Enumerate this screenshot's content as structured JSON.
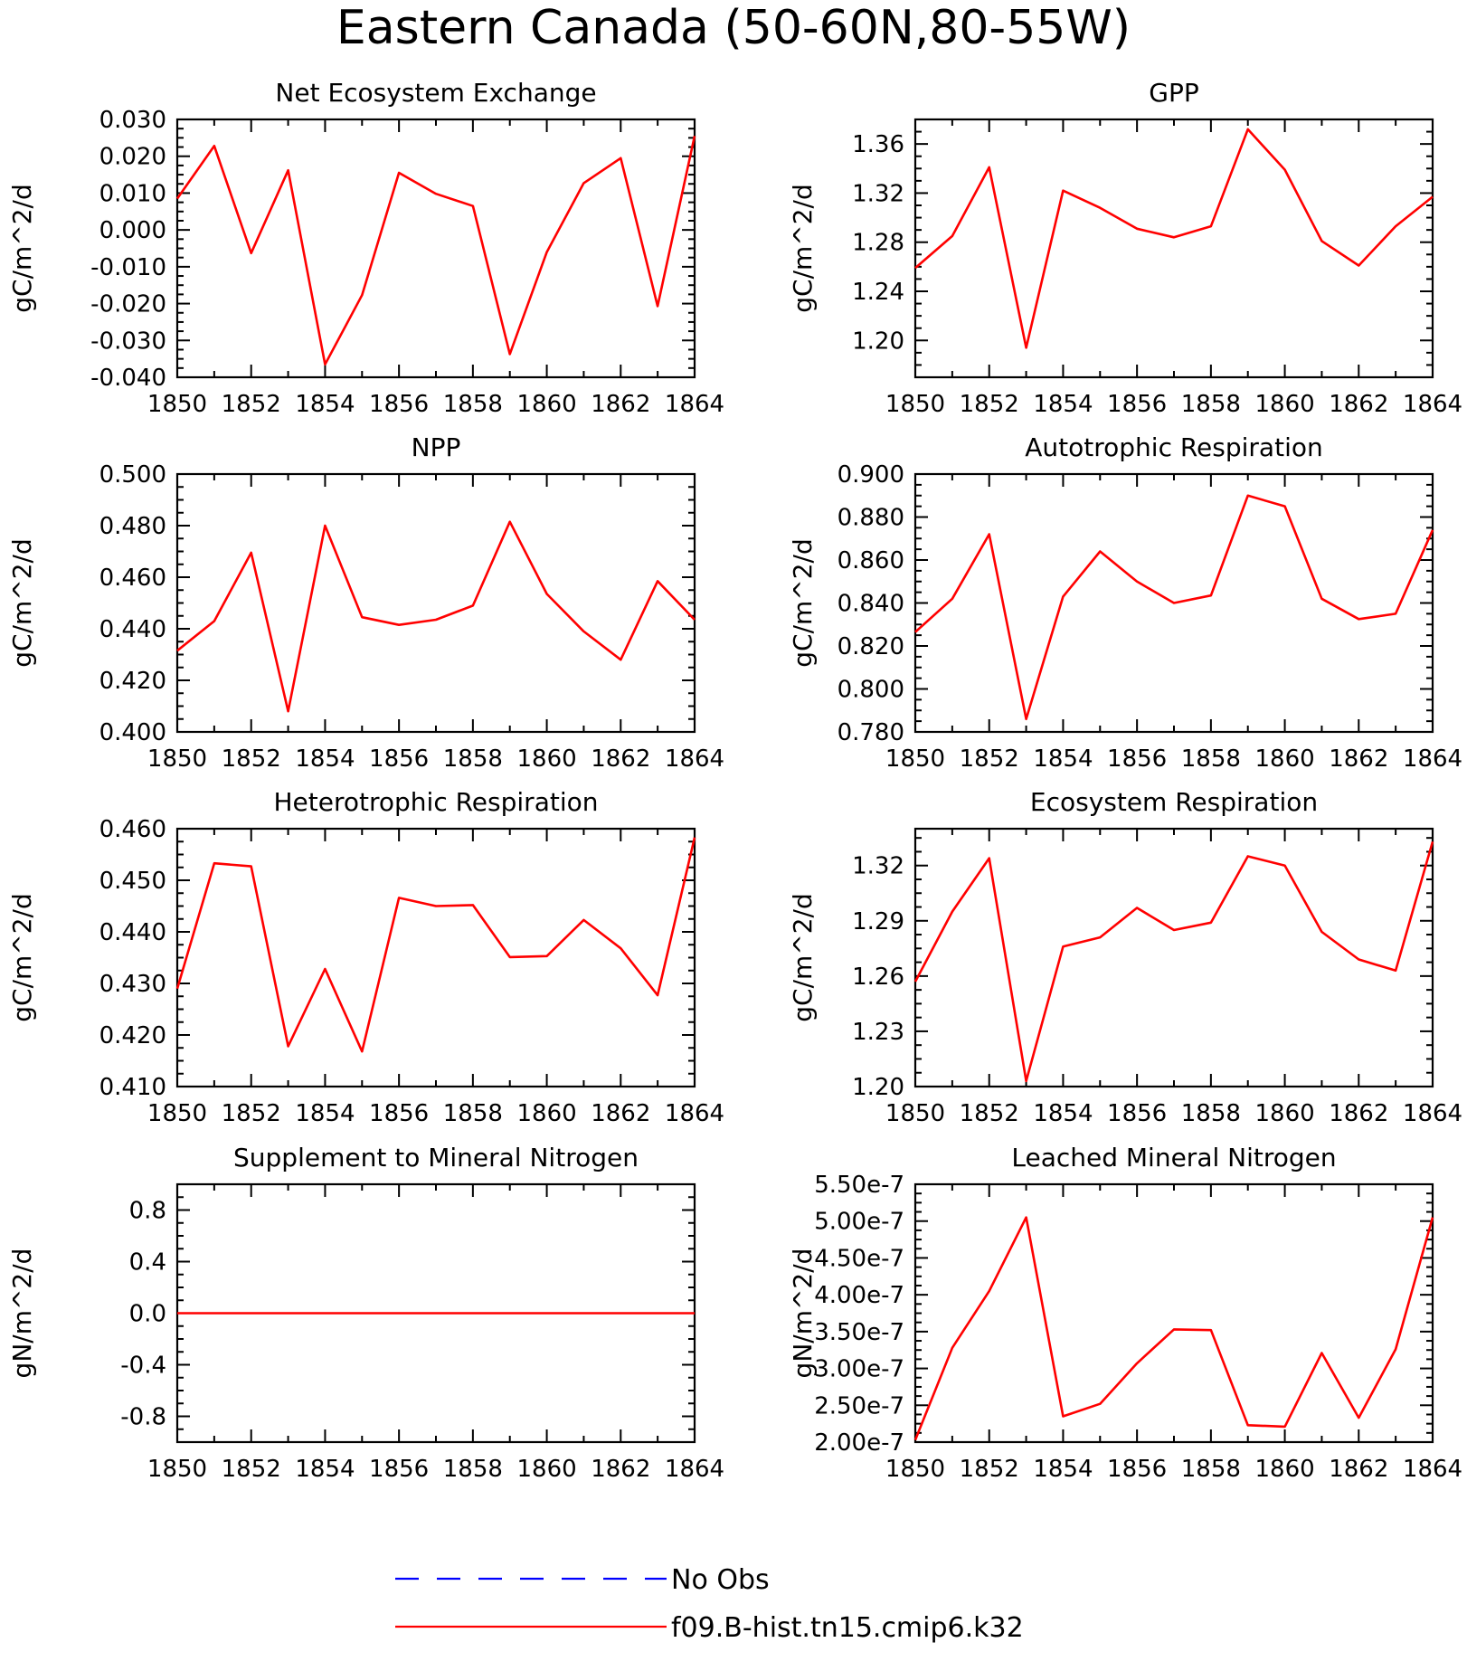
{
  "title": "Eastern Canada (50-60N,80-55W)",
  "legend": {
    "entries": [
      {
        "label": "No Obs",
        "color": "#0000ff",
        "style": "dashed"
      },
      {
        "label": "f09.B-hist.tn15.cmip6.k32",
        "color": "#ff0000",
        "style": "solid"
      }
    ],
    "placement": "bottom-center"
  },
  "chart_data": [
    {
      "type": "line",
      "title": "Net Ecosystem Exchange",
      "ylabel": "gC/m^2/d",
      "xlim": [
        1850,
        1864
      ],
      "ylim": [
        -0.04,
        0.03
      ],
      "xticks": [
        1850,
        1852,
        1854,
        1856,
        1858,
        1860,
        1862,
        1864
      ],
      "xtick_labels": [
        "1850",
        "1852",
        "1854",
        "1856",
        "1858",
        "1860",
        "1862",
        "1864"
      ],
      "yticks": [
        -0.04,
        -0.03,
        -0.02,
        -0.01,
        0.0,
        0.01,
        0.02,
        0.03
      ],
      "ytick_labels": [
        "-0.040",
        "-0.030",
        "-0.020",
        "-0.010",
        "0.000",
        "0.010",
        "0.020",
        "0.030"
      ],
      "x": [
        1850,
        1851,
        1852,
        1853,
        1854,
        1855,
        1856,
        1857,
        1858,
        1859,
        1860,
        1861,
        1862,
        1863,
        1864
      ],
      "series": [
        {
          "values": [
            0.0085,
            0.0228,
            -0.0063,
            0.0162,
            -0.0365,
            -0.0177,
            0.0155,
            0.0098,
            0.0065,
            -0.0337,
            -0.006,
            0.0127,
            0.0195,
            -0.0207,
            0.0255
          ]
        }
      ]
    },
    {
      "type": "line",
      "title": "GPP",
      "ylabel": "gC/m^2/d",
      "xlim": [
        1850,
        1864
      ],
      "ylim": [
        1.17,
        1.38
      ],
      "xticks": [
        1850,
        1852,
        1854,
        1856,
        1858,
        1860,
        1862,
        1864
      ],
      "xtick_labels": [
        "1850",
        "1852",
        "1854",
        "1856",
        "1858",
        "1860",
        "1862",
        "1864"
      ],
      "yticks": [
        1.2,
        1.24,
        1.28,
        1.32,
        1.36
      ],
      "ytick_labels": [
        "1.20",
        "1.24",
        "1.28",
        "1.32",
        "1.36"
      ],
      "x": [
        1850,
        1851,
        1852,
        1853,
        1854,
        1855,
        1856,
        1857,
        1858,
        1859,
        1860,
        1861,
        1862,
        1863,
        1864
      ],
      "series": [
        {
          "values": [
            1.259,
            1.285,
            1.341,
            1.194,
            1.322,
            1.308,
            1.291,
            1.284,
            1.293,
            1.372,
            1.339,
            1.281,
            1.261,
            1.293,
            1.317
          ]
        }
      ]
    },
    {
      "type": "line",
      "title": "NPP",
      "ylabel": "gC/m^2/d",
      "xlim": [
        1850,
        1864
      ],
      "ylim": [
        0.4,
        0.5
      ],
      "xticks": [
        1850,
        1852,
        1854,
        1856,
        1858,
        1860,
        1862,
        1864
      ],
      "xtick_labels": [
        "1850",
        "1852",
        "1854",
        "1856",
        "1858",
        "1860",
        "1862",
        "1864"
      ],
      "yticks": [
        0.4,
        0.42,
        0.44,
        0.46,
        0.48,
        0.5
      ],
      "ytick_labels": [
        "0.400",
        "0.420",
        "0.440",
        "0.460",
        "0.480",
        "0.500"
      ],
      "x": [
        1850,
        1851,
        1852,
        1853,
        1854,
        1855,
        1856,
        1857,
        1858,
        1859,
        1860,
        1861,
        1862,
        1863,
        1864
      ],
      "series": [
        {
          "values": [
            0.4315,
            0.443,
            0.4695,
            0.408,
            0.48,
            0.4445,
            0.4415,
            0.4435,
            0.449,
            0.4815,
            0.4535,
            0.439,
            0.428,
            0.4585,
            0.4435
          ]
        }
      ]
    },
    {
      "type": "line",
      "title": "Autotrophic Respiration",
      "ylabel": "gC/m^2/d",
      "xlim": [
        1850,
        1864
      ],
      "ylim": [
        0.78,
        0.9
      ],
      "xticks": [
        1850,
        1852,
        1854,
        1856,
        1858,
        1860,
        1862,
        1864
      ],
      "xtick_labels": [
        "1850",
        "1852",
        "1854",
        "1856",
        "1858",
        "1860",
        "1862",
        "1864"
      ],
      "yticks": [
        0.78,
        0.8,
        0.82,
        0.84,
        0.86,
        0.88,
        0.9
      ],
      "ytick_labels": [
        "0.780",
        "0.800",
        "0.820",
        "0.840",
        "0.860",
        "0.880",
        "0.900"
      ],
      "x": [
        1850,
        1851,
        1852,
        1853,
        1854,
        1855,
        1856,
        1857,
        1858,
        1859,
        1860,
        1861,
        1862,
        1863,
        1864
      ],
      "series": [
        {
          "values": [
            0.8265,
            0.842,
            0.872,
            0.786,
            0.843,
            0.864,
            0.85,
            0.84,
            0.8435,
            0.89,
            0.885,
            0.842,
            0.8325,
            0.835,
            0.874
          ]
        }
      ]
    },
    {
      "type": "line",
      "title": "Heterotrophic Respiration",
      "ylabel": "gC/m^2/d",
      "xlim": [
        1850,
        1864
      ],
      "ylim": [
        0.41,
        0.46
      ],
      "xticks": [
        1850,
        1852,
        1854,
        1856,
        1858,
        1860,
        1862,
        1864
      ],
      "xtick_labels": [
        "1850",
        "1852",
        "1854",
        "1856",
        "1858",
        "1860",
        "1862",
        "1864"
      ],
      "yticks": [
        0.41,
        0.42,
        0.43,
        0.44,
        0.45,
        0.46
      ],
      "ytick_labels": [
        "0.410",
        "0.420",
        "0.430",
        "0.440",
        "0.450",
        "0.460"
      ],
      "x": [
        1850,
        1851,
        1852,
        1853,
        1854,
        1855,
        1856,
        1857,
        1858,
        1859,
        1860,
        1861,
        1862,
        1863,
        1864
      ],
      "series": [
        {
          "values": [
            0.429,
            0.4533,
            0.4527,
            0.4178,
            0.4328,
            0.4168,
            0.4466,
            0.445,
            0.4452,
            0.4351,
            0.4353,
            0.4423,
            0.4368,
            0.4277,
            0.4583
          ]
        }
      ]
    },
    {
      "type": "line",
      "title": "Ecosystem Respiration",
      "ylabel": "gC/m^2/d",
      "xlim": [
        1850,
        1864
      ],
      "ylim": [
        1.2,
        1.34
      ],
      "xticks": [
        1850,
        1852,
        1854,
        1856,
        1858,
        1860,
        1862,
        1864
      ],
      "xtick_labels": [
        "1850",
        "1852",
        "1854",
        "1856",
        "1858",
        "1860",
        "1862",
        "1864"
      ],
      "yticks": [
        1.2,
        1.23,
        1.26,
        1.29,
        1.32
      ],
      "ytick_labels": [
        "1.20",
        "1.23",
        "1.26",
        "1.29",
        "1.32"
      ],
      "x": [
        1850,
        1851,
        1852,
        1853,
        1854,
        1855,
        1856,
        1857,
        1858,
        1859,
        1860,
        1861,
        1862,
        1863,
        1864
      ],
      "series": [
        {
          "values": [
            1.257,
            1.295,
            1.324,
            1.203,
            1.276,
            1.281,
            1.297,
            1.285,
            1.289,
            1.325,
            1.32,
            1.284,
            1.269,
            1.263,
            1.333
          ]
        }
      ]
    },
    {
      "type": "line",
      "title": "Supplement to Mineral Nitrogen",
      "ylabel": "gN/m^2/d",
      "xlim": [
        1850,
        1864
      ],
      "ylim": [
        -1.0,
        1.0
      ],
      "xticks": [
        1850,
        1852,
        1854,
        1856,
        1858,
        1860,
        1862,
        1864
      ],
      "xtick_labels": [
        "1850",
        "1852",
        "1854",
        "1856",
        "1858",
        "1860",
        "1862",
        "1864"
      ],
      "yticks": [
        -0.8,
        -0.4,
        0.0,
        0.4,
        0.8
      ],
      "ytick_labels": [
        "-0.8",
        "-0.4",
        "0.0",
        "0.4",
        "0.8"
      ],
      "x": [
        1850,
        1851,
        1852,
        1853,
        1854,
        1855,
        1856,
        1857,
        1858,
        1859,
        1860,
        1861,
        1862,
        1863,
        1864
      ],
      "series": [
        {
          "values": [
            0,
            0,
            0,
            0,
            0,
            0,
            0,
            0,
            0,
            0,
            0,
            0,
            0,
            0,
            0
          ]
        }
      ]
    },
    {
      "type": "line",
      "title": "Leached Mineral Nitrogen",
      "ylabel": "gN/m^2/d",
      "xlim": [
        1850,
        1864
      ],
      "ylim": [
        2e-07,
        5.5e-07
      ],
      "xticks": [
        1850,
        1852,
        1854,
        1856,
        1858,
        1860,
        1862,
        1864
      ],
      "xtick_labels": [
        "1850",
        "1852",
        "1854",
        "1856",
        "1858",
        "1860",
        "1862",
        "1864"
      ],
      "yticks": [
        2e-07,
        2.5e-07,
        3e-07,
        3.5e-07,
        4e-07,
        4.5e-07,
        5e-07,
        5.5e-07
      ],
      "ytick_labels": [
        "2.00e-7",
        "2.50e-7",
        "3.00e-7",
        "3.50e-7",
        "4.00e-7",
        "4.50e-7",
        "5.00e-7",
        "5.50e-7"
      ],
      "x": [
        1850,
        1851,
        1852,
        1853,
        1854,
        1855,
        1856,
        1857,
        1858,
        1859,
        1860,
        1861,
        1862,
        1863,
        1864
      ],
      "series": [
        {
          "values": [
            2.03e-07,
            3.28e-07,
            4.05e-07,
            5.05e-07,
            2.35e-07,
            2.52e-07,
            3.07e-07,
            3.53e-07,
            3.52e-07,
            2.23e-07,
            2.21e-07,
            3.21e-07,
            2.33e-07,
            3.26e-07,
            5.05e-07
          ]
        }
      ]
    }
  ]
}
